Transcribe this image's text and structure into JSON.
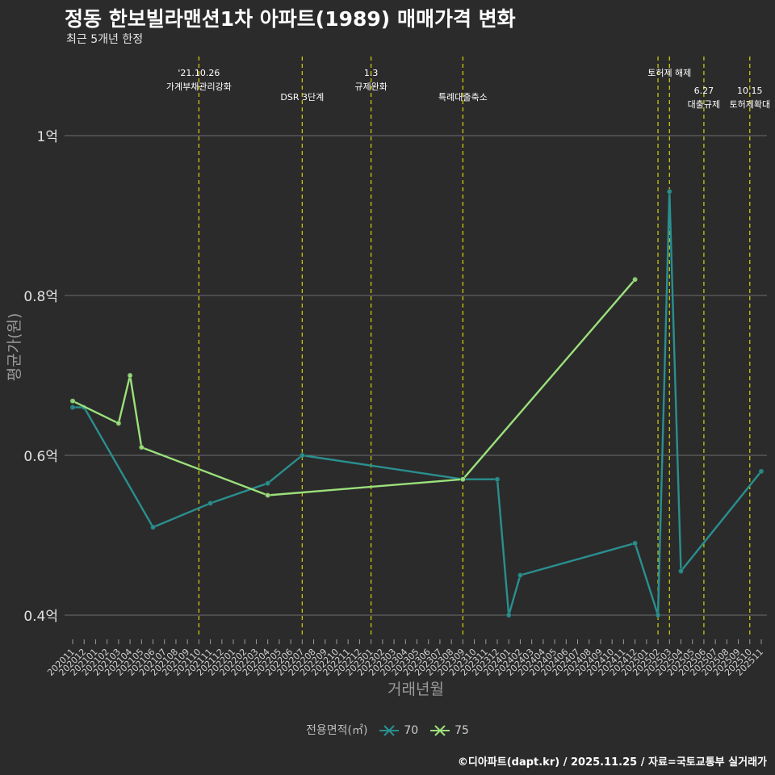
{
  "title": "정동 한보빌라맨션1차 아파트(1989) 매매가격 변화",
  "subtitle": "최근 5개년 한정",
  "caption": "©디아파트(dapt.kr) / 2025.11.25 / 자료=국토교통부 실거래가",
  "chart_data": {
    "type": "line",
    "xlabel": "거래년월",
    "ylabel": "평균가(원)",
    "ylim": [
      0.375,
      1.1
    ],
    "yticks": [
      0.4,
      0.6,
      0.8,
      1.0
    ],
    "ytick_labels": [
      "0.4억",
      "0.6억",
      "0.8억",
      "1억"
    ],
    "categories": [
      "202011",
      "202012",
      "202101",
      "202102",
      "202103",
      "202104",
      "202105",
      "202106",
      "202107",
      "202108",
      "202109",
      "202110",
      "202111",
      "202112",
      "202201",
      "202202",
      "202203",
      "202204",
      "202205",
      "202206",
      "202207",
      "202208",
      "202209",
      "202210",
      "202211",
      "202212",
      "202301",
      "202302",
      "202303",
      "202304",
      "202305",
      "202306",
      "202307",
      "202308",
      "202309",
      "202310",
      "202311",
      "202312",
      "202401",
      "202402",
      "202403",
      "202404",
      "202405",
      "202406",
      "202407",
      "202408",
      "202409",
      "202410",
      "202411",
      "202412",
      "202501",
      "202502",
      "202503",
      "202504",
      "202505",
      "202506",
      "202507",
      "202508",
      "202509",
      "202510",
      "202511"
    ],
    "legend_title": "전용면적(㎡)",
    "series": [
      {
        "name": "70",
        "color": "#2a8f8f",
        "points": [
          [
            "202011",
            0.66
          ],
          [
            "202012",
            0.66
          ],
          [
            "202106",
            0.51
          ],
          [
            "202111",
            0.54
          ],
          [
            "202204",
            0.565
          ],
          [
            "202207",
            0.6
          ],
          [
            "202309",
            0.57
          ],
          [
            "202312",
            0.57
          ],
          [
            "202401",
            0.4
          ],
          [
            "202402",
            0.45
          ],
          [
            "202412",
            0.49
          ],
          [
            "202502",
            0.4
          ],
          [
            "202503",
            0.93
          ],
          [
            "202504",
            0.455
          ],
          [
            "202511",
            0.58
          ]
        ]
      },
      {
        "name": "75",
        "color": "#9be07b",
        "points": [
          [
            "202011",
            0.668
          ],
          [
            "202103",
            0.64
          ],
          [
            "202104",
            0.7
          ],
          [
            "202105",
            0.61
          ],
          [
            "202204",
            0.55
          ],
          [
            "202309",
            0.57
          ],
          [
            "202412",
            0.82
          ]
        ]
      }
    ],
    "annotations": [
      {
        "x": "202110",
        "label1": "'21.10.26",
        "label2": "가계부채관리강화"
      },
      {
        "x": "202207",
        "label1": "",
        "label2": "DSR 3단계"
      },
      {
        "x": "202301",
        "label1": "1.3",
        "label2": "규제완화"
      },
      {
        "x": "202309",
        "label1": "",
        "label2": "특례대출축소"
      },
      {
        "x": "202502",
        "label1": "",
        "label2": ""
      },
      {
        "x": "202503",
        "label1": "토허제 해제",
        "label2": ""
      },
      {
        "x": "202506",
        "label1": "6.27",
        "label2": "대출규제"
      },
      {
        "x": "202510",
        "label1": "10.15",
        "label2": "토허제확대"
      }
    ]
  }
}
